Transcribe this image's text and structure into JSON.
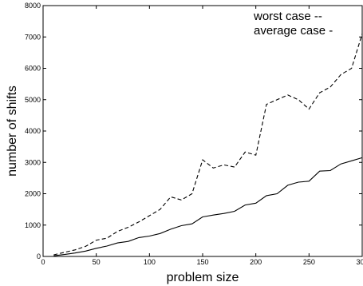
{
  "chart_data": {
    "type": "line",
    "xlabel": "problem size",
    "ylabel": "number of shifts",
    "xlim": [
      0,
      300
    ],
    "ylim": [
      0,
      8000
    ],
    "x_ticks": [
      0,
      50,
      100,
      150,
      200,
      250,
      300
    ],
    "y_ticks": [
      0,
      1000,
      2000,
      3000,
      4000,
      5000,
      6000,
      7000,
      8000
    ],
    "grid": false,
    "legend_position": "top-right",
    "x": [
      10,
      20,
      30,
      40,
      50,
      60,
      70,
      80,
      90,
      100,
      110,
      120,
      130,
      140,
      150,
      160,
      170,
      180,
      190,
      200,
      210,
      220,
      230,
      240,
      250,
      260,
      270,
      280,
      290,
      300
    ],
    "series": [
      {
        "name": "worst case",
        "line_style": "dashed",
        "legend_label": "worst case --",
        "values": [
          50,
          130,
          210,
          320,
          520,
          580,
          800,
          930,
          1100,
          1300,
          1500,
          1900,
          1800,
          2000,
          3080,
          2820,
          2920,
          2850,
          3330,
          3230,
          4850,
          5000,
          5150,
          5000,
          4700,
          5220,
          5400,
          5800,
          6000,
          7100
        ]
      },
      {
        "name": "average case",
        "line_style": "solid",
        "legend_label": "average case -",
        "values": [
          20,
          60,
          110,
          170,
          260,
          330,
          430,
          480,
          600,
          650,
          730,
          870,
          980,
          1040,
          1260,
          1320,
          1370,
          1440,
          1640,
          1700,
          1940,
          2000,
          2270,
          2370,
          2400,
          2720,
          2740,
          2950,
          3050,
          3150
        ]
      }
    ]
  }
}
